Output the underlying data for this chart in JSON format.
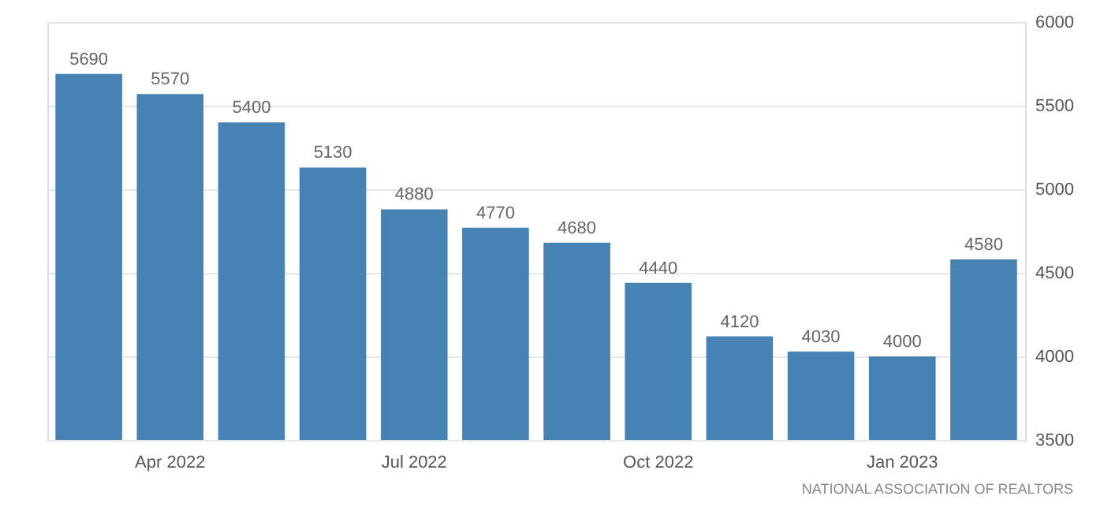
{
  "chart_data": {
    "type": "bar",
    "categories": [
      null,
      "Apr 2022",
      null,
      null,
      "Jul 2022",
      null,
      null,
      "Oct 2022",
      null,
      null,
      "Jan 2023",
      null
    ],
    "values": [
      5690,
      5570,
      5400,
      5130,
      4880,
      4770,
      4680,
      4440,
      4120,
      4030,
      4000,
      4580
    ],
    "color": "#4682b4",
    "ylim": [
      3500,
      6000
    ],
    "yticks": [
      3500,
      4000,
      4500,
      5000,
      5500,
      6000
    ],
    "grid": "y",
    "data_labels": true,
    "annotations": [
      "NATIONAL ASSOCIATION OF REALTORS"
    ]
  }
}
